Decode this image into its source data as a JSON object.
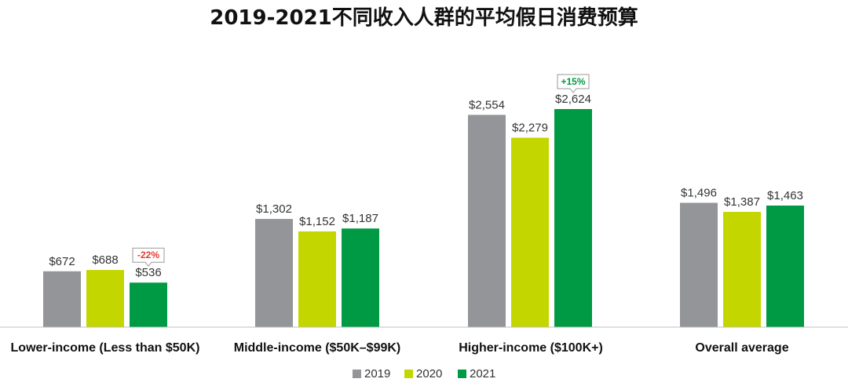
{
  "chart_data": {
    "type": "bar",
    "title": "2019-2021不同收入人群的平均假日消费预算",
    "categories": [
      "Lower-income (Less than $50K)",
      "Middle-income ($50K–$99K)",
      "Higher-income ($100K+)",
      "Overall average"
    ],
    "series": [
      {
        "name": "2019",
        "color": "#939598",
        "values": [
          672,
          1302,
          2554,
          1496
        ],
        "labels": [
          "$672",
          "$1,302",
          "$2,554",
          "$1,496"
        ]
      },
      {
        "name": "2020",
        "color": "#c4d600",
        "values": [
          688,
          1152,
          2279,
          1387
        ],
        "labels": [
          "$688",
          "$1,152",
          "$2,279",
          "$1,387"
        ]
      },
      {
        "name": "2021",
        "color": "#009a44",
        "values": [
          536,
          1187,
          2624,
          1463
        ],
        "labels": [
          "$536",
          "$1,187",
          "$2,624",
          "$1,463"
        ]
      }
    ],
    "annotations": [
      {
        "text": "-22%",
        "category_index": 0,
        "series_index": 2,
        "color": "#e03c31"
      },
      {
        "text": "+15%",
        "category_index": 2,
        "series_index": 2,
        "color": "#009a44"
      }
    ],
    "ylim": [
      0,
      2900
    ],
    "grid": false,
    "legend_position": "bottom-center"
  }
}
